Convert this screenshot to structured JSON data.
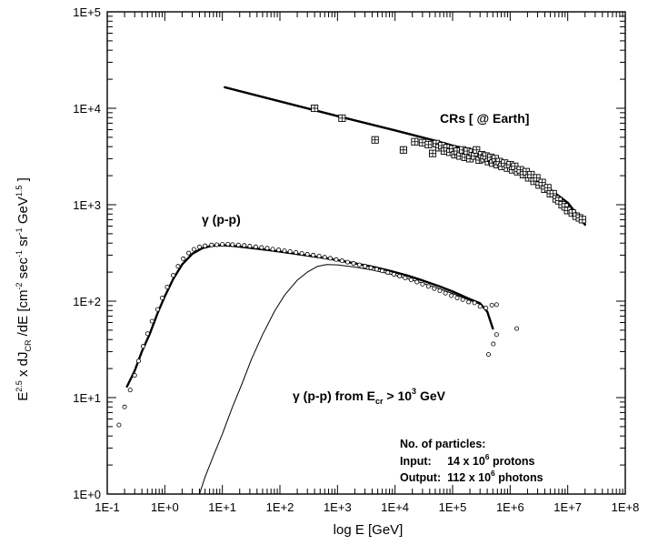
{
  "chart_data": {
    "type": "scatter",
    "title": "",
    "xlabel": {
      "main": "log E [GeV]"
    },
    "ylabel": {
      "p1": "E",
      "s1": "2.5",
      "p2": " x dJ",
      "sub": "CR",
      "p3": " /dE [cm",
      "s2": "-2",
      "p4": " sec",
      "s3": "-1",
      "p5": " sr",
      "s4": "-1",
      "p6": " GeV",
      "s5": "1.5",
      "p7": " ]"
    },
    "x_scale": "log",
    "y_scale": "log",
    "xlim": [
      0.1,
      100000000
    ],
    "ylim": [
      1,
      100000
    ],
    "x_tick_values": [
      0.1,
      1,
      10,
      100,
      1000,
      10000,
      100000,
      1000000,
      10000000,
      100000000
    ],
    "x_tick_labels": [
      "1E-1",
      "1E+0",
      "1E+1",
      "1E+2",
      "1E+3",
      "1E+4",
      "1E+5",
      "1E+6",
      "1E+7",
      "1E+8"
    ],
    "y_tick_values": [
      1,
      10,
      100,
      1000,
      10000,
      100000
    ],
    "y_tick_labels": [
      "1E+0",
      "1E+1",
      "1E+2",
      "1E+3",
      "1E+4",
      "1E+5"
    ],
    "grid": false,
    "annotations": {
      "crs": "CRs [ @ Earth]",
      "gamma_pp": "γ (p-p)",
      "gamma_ecr": {
        "a": "γ (p-p) from E",
        "sub": "cr",
        "b": " > 10",
        "sup": "3",
        "c": " GeV"
      },
      "particles_title": "No. of particles:",
      "input": {
        "a": "Input:     14 x 10",
        "sup": "6",
        "b": " protons"
      },
      "output": {
        "a": "Output:  112 x 10",
        "sup": "6",
        "b": " photons"
      }
    },
    "series": [
      {
        "label": "CRs",
        "marker": "square-cross",
        "points": [
          [
            400,
            10000
          ],
          [
            1200,
            7900
          ],
          [
            4500,
            4700
          ],
          [
            14000,
            3700
          ],
          [
            22000,
            4500
          ],
          [
            30000,
            4400
          ],
          [
            38000,
            4200
          ],
          [
            45000,
            3400
          ],
          [
            52000,
            4300
          ],
          [
            58000,
            3900
          ],
          [
            65000,
            4100
          ],
          [
            72000,
            3600
          ],
          [
            80000,
            3900
          ],
          [
            90000,
            3500
          ],
          [
            100000,
            3800
          ],
          [
            110000,
            3300
          ],
          [
            120000,
            3600
          ],
          [
            135000,
            3200
          ],
          [
            150000,
            3700
          ],
          [
            165000,
            3100
          ],
          [
            180000,
            3600
          ],
          [
            200000,
            3000
          ],
          [
            220000,
            3500
          ],
          [
            240000,
            3200
          ],
          [
            260000,
            3700
          ],
          [
            290000,
            2900
          ],
          [
            320000,
            3300
          ],
          [
            350000,
            3000
          ],
          [
            380000,
            3200
          ],
          [
            420000,
            2800
          ],
          [
            460000,
            3100
          ],
          [
            500000,
            2700
          ],
          [
            550000,
            3000
          ],
          [
            600000,
            2600
          ],
          [
            650000,
            2800
          ],
          [
            720000,
            2500
          ],
          [
            800000,
            2700
          ],
          [
            900000,
            2400
          ],
          [
            1000000,
            2600
          ],
          [
            1100000,
            2300
          ],
          [
            1200000,
            2500
          ],
          [
            1350000,
            2200
          ],
          [
            1500000,
            2300
          ],
          [
            1700000,
            2050
          ],
          [
            1900000,
            2200
          ],
          [
            2100000,
            1900
          ],
          [
            2300000,
            2050
          ],
          [
            2600000,
            1750
          ],
          [
            2900000,
            1900
          ],
          [
            3200000,
            1600
          ],
          [
            3600000,
            1700
          ],
          [
            4000000,
            1450
          ],
          [
            4500000,
            1500
          ],
          [
            5000000,
            1300
          ],
          [
            5600000,
            1300
          ],
          [
            6300000,
            1150
          ],
          [
            7000000,
            1100
          ],
          [
            8000000,
            1000
          ],
          [
            9000000,
            950
          ],
          [
            10000000,
            870
          ],
          [
            12000000,
            820
          ],
          [
            14000000,
            760
          ],
          [
            16000000,
            730
          ],
          [
            18000000,
            700
          ]
        ]
      },
      {
        "label": "γ (p-p) simulated",
        "marker": "open-circle",
        "points": [
          [
            0.16,
            5.2
          ],
          [
            0.2,
            8
          ],
          [
            0.25,
            12
          ],
          [
            0.3,
            17
          ],
          [
            0.35,
            24
          ],
          [
            0.42,
            34
          ],
          [
            0.5,
            46
          ],
          [
            0.6,
            62
          ],
          [
            0.75,
            82
          ],
          [
            0.9,
            108
          ],
          [
            1.1,
            140
          ],
          [
            1.4,
            185
          ],
          [
            1.7,
            230
          ],
          [
            2.1,
            275
          ],
          [
            2.6,
            315
          ],
          [
            3.2,
            345
          ],
          [
            4,
            365
          ],
          [
            5,
            375
          ],
          [
            6.5,
            382
          ],
          [
            8,
            385
          ],
          [
            10,
            388
          ],
          [
            12.5,
            390
          ],
          [
            15,
            386
          ],
          [
            19,
            382
          ],
          [
            24,
            378
          ],
          [
            30,
            372
          ],
          [
            38,
            366
          ],
          [
            48,
            360
          ],
          [
            60,
            354
          ],
          [
            75,
            346
          ],
          [
            95,
            340
          ],
          [
            120,
            333
          ],
          [
            150,
            327
          ],
          [
            190,
            320
          ],
          [
            240,
            313
          ],
          [
            300,
            306
          ],
          [
            380,
            300
          ],
          [
            480,
            293
          ],
          [
            600,
            285
          ],
          [
            750,
            278
          ],
          [
            950,
            270
          ],
          [
            1200,
            262
          ],
          [
            1500,
            254
          ],
          [
            1900,
            246
          ],
          [
            2400,
            238
          ],
          [
            3000,
            230
          ],
          [
            3800,
            222
          ],
          [
            4800,
            214
          ],
          [
            6000,
            206
          ],
          [
            7500,
            198
          ],
          [
            9500,
            190
          ],
          [
            12000,
            182
          ],
          [
            15000,
            174
          ],
          [
            19000,
            166
          ],
          [
            24000,
            158
          ],
          [
            30000,
            150
          ],
          [
            38000,
            142
          ],
          [
            48000,
            135
          ],
          [
            60000,
            128
          ],
          [
            75000,
            121
          ],
          [
            95000,
            114
          ],
          [
            120000,
            108
          ],
          [
            150000,
            104
          ],
          [
            190000,
            98
          ],
          [
            240000,
            96
          ],
          [
            300000,
            88
          ],
          [
            380000,
            85
          ],
          [
            480000,
            91
          ],
          [
            580000,
            92
          ],
          [
            420000,
            28
          ],
          [
            510000,
            36
          ],
          [
            580000,
            45
          ],
          [
            1300000,
            52
          ]
        ]
      },
      {
        "label": "γ (p-p) fit",
        "style": "thick-line",
        "points": [
          [
            0.22,
            13
          ],
          [
            0.3,
            19
          ],
          [
            0.4,
            30
          ],
          [
            0.55,
            46
          ],
          [
            0.75,
            75
          ],
          [
            1,
            112
          ],
          [
            1.4,
            170
          ],
          [
            2,
            240
          ],
          [
            3,
            310
          ],
          [
            4.5,
            355
          ],
          [
            6.5,
            375
          ],
          [
            10,
            380
          ],
          [
            15,
            375
          ],
          [
            25,
            362
          ],
          [
            40,
            350
          ],
          [
            70,
            336
          ],
          [
            120,
            322
          ],
          [
            200,
            308
          ],
          [
            350,
            294
          ],
          [
            600,
            280
          ],
          [
            1000,
            266
          ],
          [
            2000,
            247
          ],
          [
            4000,
            228
          ],
          [
            8000,
            207
          ],
          [
            16000,
            185
          ],
          [
            30000,
            164
          ],
          [
            60000,
            142
          ],
          [
            100000,
            126
          ],
          [
            200000,
            105
          ],
          [
            300000,
            95
          ],
          [
            400000,
            78
          ],
          [
            500000,
            52
          ]
        ]
      },
      {
        "label": "γ (p-p) from Ecr > 1E+3 GeV",
        "style": "thin-line",
        "points": [
          [
            4,
            1
          ],
          [
            5,
            1.5
          ],
          [
            7,
            2.5
          ],
          [
            10,
            4.2
          ],
          [
            15,
            8
          ],
          [
            22,
            14
          ],
          [
            32,
            25
          ],
          [
            50,
            45
          ],
          [
            80,
            78
          ],
          [
            120,
            115
          ],
          [
            200,
            165
          ],
          [
            300,
            200
          ],
          [
            450,
            230
          ],
          [
            650,
            240
          ],
          [
            1000,
            238
          ],
          [
            2000,
            226
          ],
          [
            4000,
            210
          ],
          [
            8000,
            192
          ],
          [
            16000,
            172
          ],
          [
            30000,
            154
          ],
          [
            60000,
            134
          ],
          [
            100000,
            120
          ],
          [
            200000,
            102
          ],
          [
            300000,
            93
          ],
          [
            400000,
            78
          ],
          [
            500000,
            52
          ]
        ]
      },
      {
        "label": "CRs power-law",
        "style": "thick-line",
        "points": [
          [
            11,
            16500
          ],
          [
            100,
            11800
          ],
          [
            1000,
            8300
          ],
          [
            10000,
            5900
          ],
          [
            50000,
            4600
          ],
          [
            100000,
            4100
          ],
          [
            300000,
            3500
          ],
          [
            1000000,
            2600
          ],
          [
            3000000,
            1800
          ],
          [
            10000000,
            1050
          ],
          [
            20000000,
            620
          ]
        ]
      }
    ]
  }
}
